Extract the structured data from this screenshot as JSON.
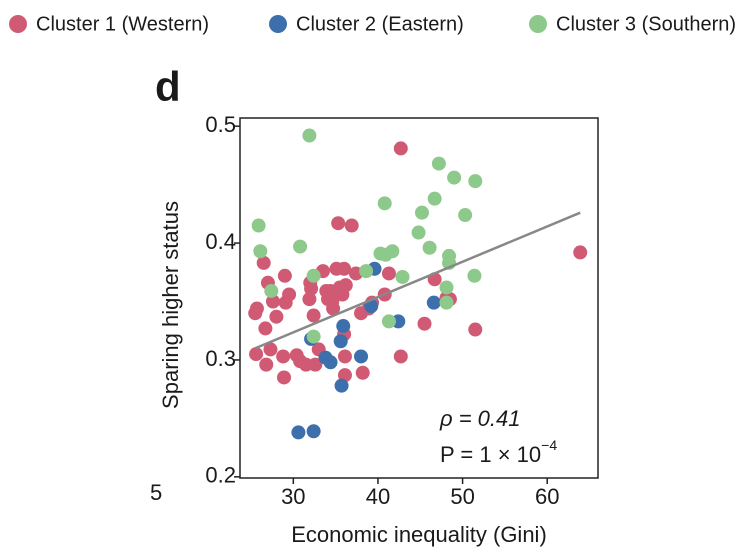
{
  "chart_data": {
    "type": "scatter",
    "panel_label": "d",
    "cropped_tick": "5",
    "x_label": "Economic inequality (Gini)",
    "y_label": "Sparing higher status",
    "xlim": [
      23.7,
      66
    ],
    "ylim": [
      0.199,
      0.507
    ],
    "xticks": [
      30,
      40,
      50,
      60
    ],
    "yticks": [
      0.2,
      0.3,
      0.4,
      0.5
    ],
    "annotation_rho": "ρ = 0.41",
    "annotation_p": "P = 1 × 10",
    "annotation_p_exp": "−4",
    "trend_line": {
      "x": [
        25.5,
        63.9
      ],
      "values": [
        0.31,
        0.426
      ],
      "color": "#888888"
    },
    "series": [
      {
        "name": "Cluster 1 (Western)",
        "color": "#d05a73",
        "x": [
          25.5,
          25.7,
          25.6,
          26.5,
          26.7,
          27.0,
          27.3,
          26.8,
          27.6,
          28.0,
          28.8,
          28.9,
          29.0,
          29.1,
          29.5,
          30.4,
          30.8,
          31.5,
          31.9,
          32.0,
          32.1,
          32.4,
          32.6,
          33.0,
          33.5,
          33.9,
          34.1,
          34.4,
          34.6,
          34.7,
          35.1,
          35.3,
          35.5,
          35.8,
          36.0,
          36.0,
          36.1,
          36.1,
          36.9,
          37.4,
          38.0,
          38.2,
          38.9,
          39.3,
          40.8,
          41.3,
          42.7,
          42.7,
          45.5,
          46.7,
          48.1,
          48.5,
          51.5,
          63.9,
          36.2
        ],
        "values": [
          0.34,
          0.344,
          0.305,
          0.383,
          0.327,
          0.366,
          0.309,
          0.296,
          0.35,
          0.337,
          0.303,
          0.285,
          0.372,
          0.349,
          0.356,
          0.304,
          0.299,
          0.296,
          0.352,
          0.366,
          0.361,
          0.338,
          0.296,
          0.309,
          0.376,
          0.359,
          0.352,
          0.359,
          0.35,
          0.344,
          0.378,
          0.417,
          0.362,
          0.356,
          0.378,
          0.322,
          0.287,
          0.303,
          0.415,
          0.374,
          0.34,
          0.289,
          0.344,
          0.349,
          0.356,
          0.374,
          0.481,
          0.303,
          0.331,
          0.369,
          0.353,
          0.352,
          0.326,
          0.392,
          0.364
        ]
      },
      {
        "name": "Cluster 2 (Eastern)",
        "color": "#3e6fad",
        "x": [
          30.6,
          32.4,
          32.1,
          33.8,
          34.4,
          35.7,
          35.9,
          35.6,
          38.0,
          39.6,
          39.2,
          42.4,
          46.6
        ],
        "values": [
          0.238,
          0.239,
          0.318,
          0.302,
          0.298,
          0.278,
          0.329,
          0.316,
          0.303,
          0.378,
          0.346,
          0.333,
          0.349
        ]
      },
      {
        "name": "Cluster 3 (Southern)",
        "color": "#8cc98a",
        "x": [
          31.9,
          25.9,
          26.1,
          27.4,
          30.8,
          32.4,
          32.4,
          38.6,
          40.3,
          40.8,
          40.9,
          41.7,
          41.3,
          42.9,
          44.8,
          45.2,
          46.1,
          46.7,
          47.2,
          48.1,
          48.4,
          48.4,
          48.1,
          49.0,
          50.3,
          51.5,
          51.4
        ],
        "values": [
          0.492,
          0.415,
          0.393,
          0.359,
          0.397,
          0.372,
          0.32,
          0.376,
          0.391,
          0.434,
          0.39,
          0.393,
          0.333,
          0.371,
          0.409,
          0.426,
          0.396,
          0.438,
          0.468,
          0.349,
          0.389,
          0.383,
          0.362,
          0.456,
          0.424,
          0.453,
          0.372
        ]
      }
    ]
  }
}
